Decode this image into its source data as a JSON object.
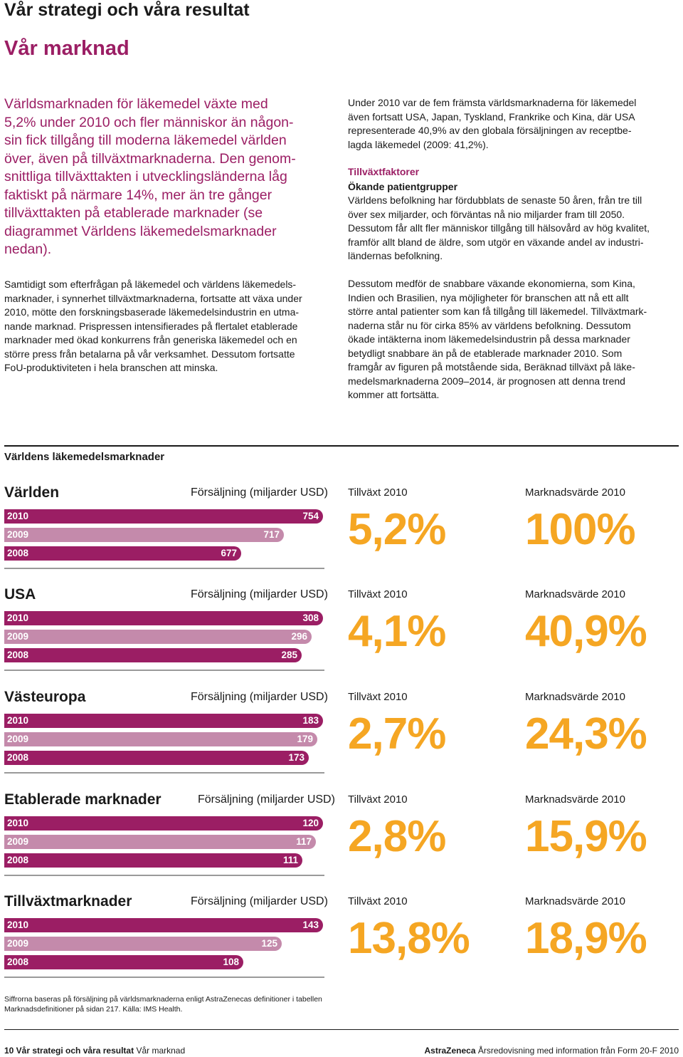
{
  "header": {
    "page_title": "Vår strategi och våra resultat",
    "section_title": "Vår marknad"
  },
  "intro": {
    "lead_lines": [
      "Världsmarknaden för läkemedel växte med",
      "5,2% under 2010 och fler människor än någon-",
      "sin fick tillgång till moderna läkemedel världen",
      "över, även på tillväxtmarknaderna. Den genom-",
      "snittliga tillväxttakten i utvecklingsländerna låg",
      "faktiskt på närmare 14%, mer än tre gånger",
      "tillväxttakten på etablerade marknader (se",
      "diagrammet Världens läkemedelsmarknader",
      "nedan)."
    ],
    "body_lines": [
      "Samtidigt som efterfrågan på läkemedel och världens läkemedels-",
      "marknader, i synnerhet tillväxtmarknaderna, fortsatte att växa under",
      "2010, mötte den forskningsbaserade läkemedelsindustrin en utma-",
      "nande marknad. Prispressen intensifierades på flertalet etablerade",
      "marknader med ökad konkurrens från generiska läkemedel och en",
      "större press från betalarna på vår verksamhet. Dessutom fortsatte",
      "FoU-produktiviteten i hela branschen att minska."
    ]
  },
  "right_column": {
    "para1_lines": [
      "Under 2010 var de fem främsta världsmarknaderna för läkemedel",
      "även fortsatt USA, Japan, Tyskland, Frankrike och Kina, där USA",
      "representerade 40,9% av den globala försäljningen av receptbe-",
      "lagda läkemedel (2009: 41,2%)."
    ],
    "growth_heading": "Tillväxtfaktorer",
    "patient_heading": "Ökande patientgrupper",
    "para2_lines": [
      "Världens befolkning har fördubblats de senaste 50 åren, från tre till",
      "över sex miljarder, och förväntas nå nio miljarder fram till 2050.",
      "Dessutom får allt fler människor tillgång till hälsovård av hög kvalitet,",
      "framför allt bland de äldre, som utgör en växande andel av industri-",
      "ländernas befolkning."
    ],
    "para3_lines": [
      "Dessutom medför de snabbare växande ekonomierna, som Kina,",
      "Indien och Brasilien, nya möjligheter för branschen att nå ett allt",
      "större antal patienter som kan få tillgång till läkemedel. Tillväxtmark-",
      "naderna står nu för cirka 85% av världens befolkning. Dessutom",
      "ökade intäkterna inom läkemedelsindustrin på dessa marknader",
      "betydligt snabbare än på de etablerade marknader 2010. Som",
      "framgår av figuren på motstående sida, Beräknad tillväxt på läke-",
      "medelsmarknaderna 2009–2014, är prognosen att denna trend",
      "kommer att fortsätta."
    ]
  },
  "chart": {
    "title": "Världens läkemedelsmarknader"
  },
  "chart_data": {
    "type": "bar",
    "title": "Världens läkemedelsmarknader",
    "value_label": "Försäljning (miljarder USD)",
    "growth_label": "Tillväxt 2010",
    "market_value_label": "Marknadsvärde 2010",
    "years": [
      "2010",
      "2009",
      "2008"
    ],
    "xlim": [
      0,
      754
    ],
    "regions": [
      {
        "name": "Världen",
        "sales_label": "Försäljning (miljarder USD)",
        "values": [
          754,
          717,
          677
        ],
        "growth": "5,2%",
        "market_value": "100%"
      },
      {
        "name": "USA",
        "sales_label": "Försäljning (miljarder USD)",
        "values": [
          308,
          296,
          285
        ],
        "growth": "4,1%",
        "market_value": "40,9%"
      },
      {
        "name": "Västeuropa",
        "sales_label": "Försäljning (miljarder USD)",
        "values": [
          183,
          179,
          173
        ],
        "growth": "2,7%",
        "market_value": "24,3%"
      },
      {
        "name": "Etablerade marknader",
        "sales_label": "Försäljning (miljarder USD)",
        "values": [
          120,
          117,
          111
        ],
        "growth": "2,8%",
        "market_value": "15,9%"
      },
      {
        "name": "Tillväxtmarknader",
        "sales_label": "Försäljning (miljarder USD)",
        "values": [
          143,
          125,
          108
        ],
        "growth": "13,8%",
        "market_value": "18,9%"
      }
    ],
    "colors": {
      "bar_primary": "#9b1e64",
      "bar_secondary": "#c48aab",
      "metric": "#f5a623"
    }
  },
  "footnote": {
    "lines": [
      "Siffrorna baseras på försäljning på världsmarknaderna enligt AstraZenecas definitioner i tabellen",
      "Marknadsdefinitioner på sidan 217. Källa: IMS Health."
    ]
  },
  "footer": {
    "left_bold": "10 Vår strategi och våra resultat",
    "left_regular": "Vår marknad",
    "right_bold": "AstraZeneca",
    "right_regular": "Årsredovisning med information från Form 20-F 2010"
  }
}
